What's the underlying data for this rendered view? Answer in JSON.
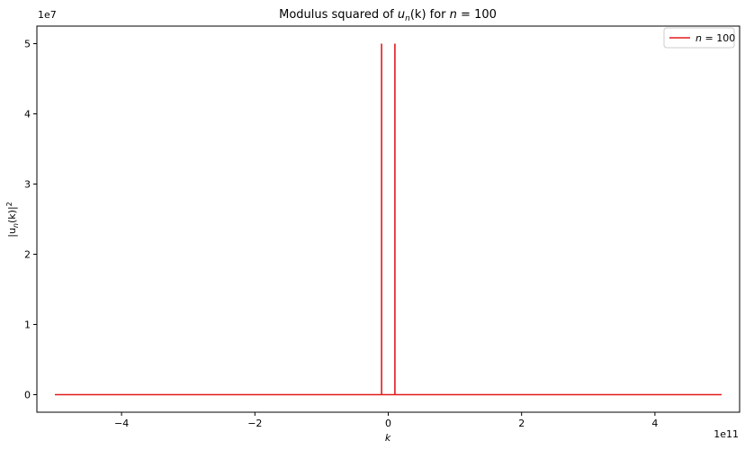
{
  "chart_data": {
    "type": "line",
    "title_prefix": "Modulus squared of ",
    "title_u": "u",
    "title_sub": "n",
    "title_arg": "(k)",
    "title_for": " for ",
    "title_n": "n",
    "title_eq": " = 100",
    "xlabel": "k",
    "ylabel_pre": "|u",
    "ylabel_sub": "n",
    "ylabel_mid": "(k)|",
    "ylabel_sup": "2",
    "x_offset_base": "1e11",
    "y_offset_base": "1e7",
    "xlim": [
      -5.27,
      5.27
    ],
    "ylim": [
      -0.25,
      5.25
    ],
    "x_ticks": [
      -4,
      -2,
      0,
      2,
      4
    ],
    "x_tick_labels": [
      "−4",
      "−2",
      "0",
      "2",
      "4"
    ],
    "y_ticks": [
      0,
      1,
      2,
      3,
      4,
      5
    ],
    "y_tick_labels": [
      "0",
      "1",
      "2",
      "3",
      "4",
      "5"
    ],
    "series": [
      {
        "name": "n = 100",
        "legend_n": "n",
        "legend_eq": " = 100",
        "color": "#e31a1c",
        "x": [
          -5.0,
          -0.1,
          -0.1,
          -0.1,
          -0.1,
          0.1,
          0.1,
          0.1,
          0.1,
          5.0
        ],
        "y": [
          0.0,
          0.0,
          5.0,
          5.0,
          0.0,
          0.0,
          5.0,
          5.0,
          0.0,
          0.0
        ]
      }
    ],
    "grid": false,
    "legend_position": "top-right"
  }
}
